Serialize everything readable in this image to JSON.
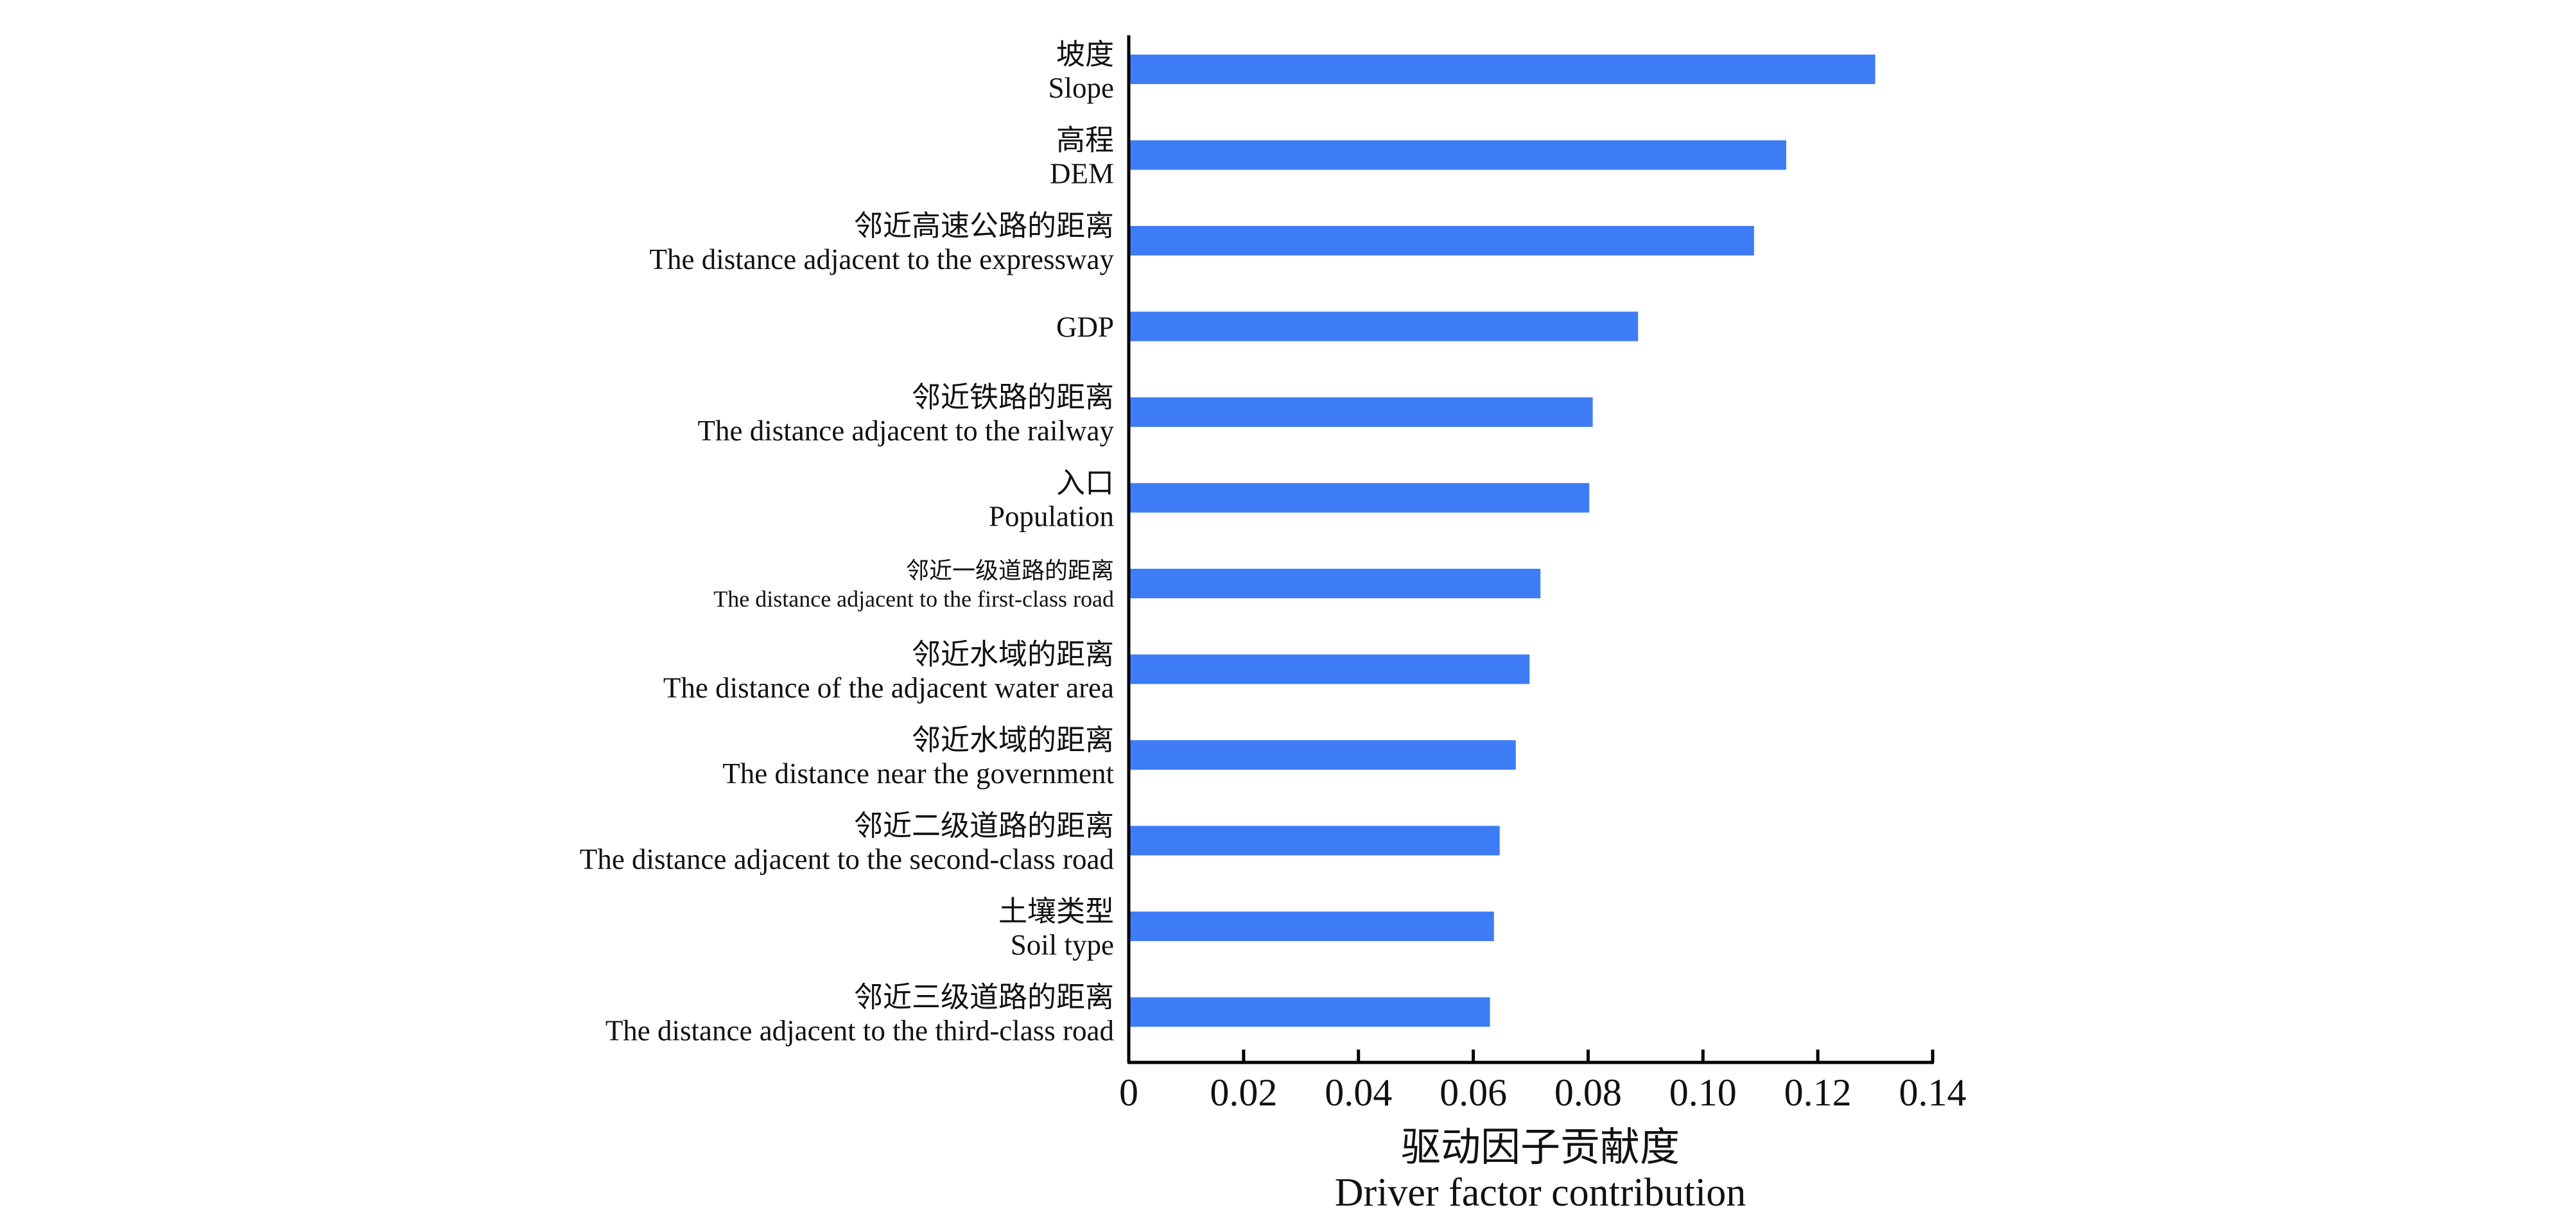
{
  "chart_data": {
    "type": "bar",
    "orientation": "horizontal",
    "categories": [
      {
        "zh": "坡度",
        "en": "Slope"
      },
      {
        "zh": "高程",
        "en": "DEM"
      },
      {
        "zh": "邻近高速公路的距离",
        "en": "The distance adjacent to the expressway"
      },
      {
        "zh": "",
        "en": "GDP"
      },
      {
        "zh": "邻近铁路的距离",
        "en": "The distance adjacent to the railway"
      },
      {
        "zh": "入口",
        "en": "Population"
      },
      {
        "zh": "邻近一级道路的距离",
        "en": "The distance adjacent to the first-class road"
      },
      {
        "zh": "邻近水域的距离",
        "en": "The distance of the adjacent water area"
      },
      {
        "zh": "邻近水域的距离",
        "en": "The distance near the government"
      },
      {
        "zh": "邻近二级道路的距离",
        "en": "The distance adjacent to the second-class road"
      },
      {
        "zh": "土壤类型",
        "en": "Soil type"
      },
      {
        "zh": "邻近三级道路的距离",
        "en": "The distance adjacent to the third-class road"
      }
    ],
    "values": [
      0.13,
      0.1145,
      0.1089,
      0.0887,
      0.0808,
      0.0802,
      0.0717,
      0.0698,
      0.0674,
      0.0646,
      0.0636,
      0.0629
    ],
    "x_ticks": [
      "0",
      "0.02",
      "0.04",
      "0.06",
      "0.08",
      "0.10",
      "0.12",
      "0.14"
    ],
    "xlim": [
      0,
      0.14
    ],
    "xlabel_zh": "驱动因子贡献度",
    "xlabel_en": "Driver factor contribution",
    "bar_color": "#3d7cf5",
    "grid": false,
    "legend": "none"
  }
}
